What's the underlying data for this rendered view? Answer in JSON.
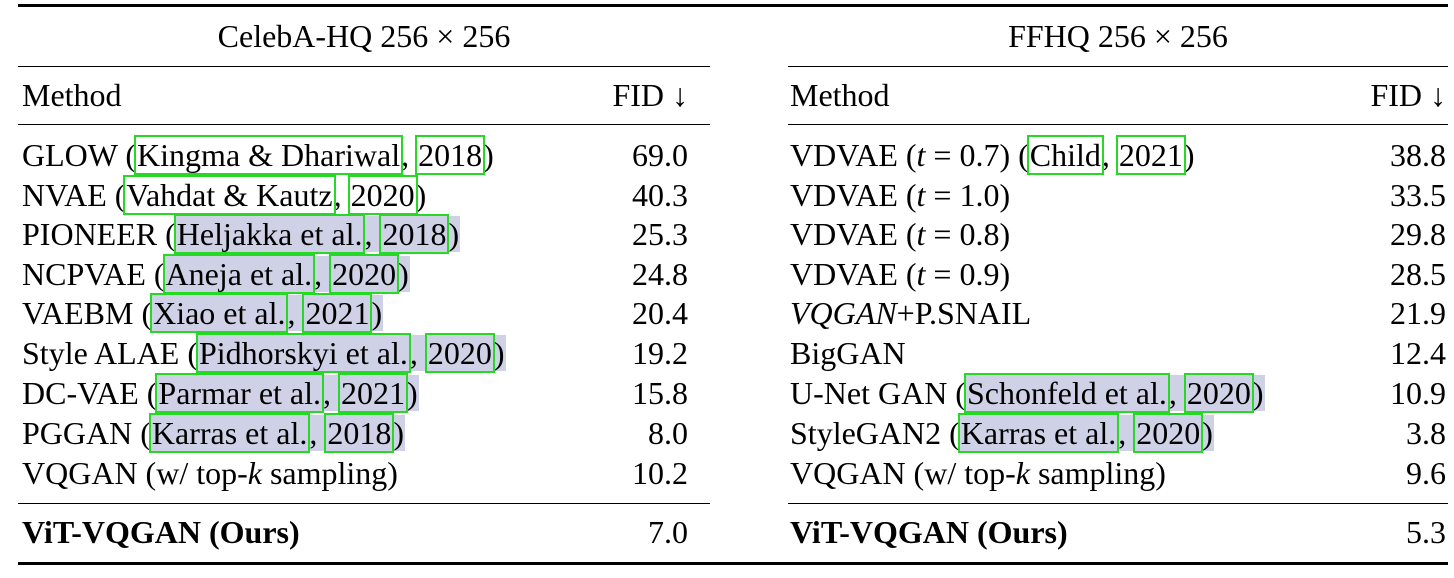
{
  "left": {
    "title": "CelebA-HQ 256 × 256",
    "col_method": "Method",
    "col_fid": "FID ↓",
    "rows": [
      {
        "prefix": "GLOW (",
        "cite_a": "Kingma & Dhariwal",
        "sep": ", ",
        "cite_b": "2018",
        "suffix": ")",
        "fid": "69.0",
        "shaded": false
      },
      {
        "prefix": "NVAE (",
        "cite_a": "Vahdat & Kautz",
        "sep": ", ",
        "cite_b": "2020",
        "suffix": ")",
        "fid": "40.3",
        "shaded": false
      },
      {
        "prefix": "PIONEER (",
        "cite_a": "Heljakka et al.",
        "sep": ", ",
        "cite_b": "2018",
        "suffix": ")",
        "fid": "25.3",
        "shaded": true
      },
      {
        "prefix": "NCPVAE (",
        "cite_a": "Aneja et al.",
        "sep": ", ",
        "cite_b": "2020",
        "suffix": ")",
        "fid": "24.8",
        "shaded": true
      },
      {
        "prefix": "VAEBM (",
        "cite_a": "Xiao et al.",
        "sep": ", ",
        "cite_b": "2021",
        "suffix": ")",
        "fid": "20.4",
        "shaded": true
      },
      {
        "prefix": "Style ALAE (",
        "cite_a": "Pidhorskyi et al.",
        "sep": ", ",
        "cite_b": "2020",
        "suffix": ")",
        "fid": "19.2",
        "shaded": true
      },
      {
        "prefix": "DC-VAE (",
        "cite_a": "Parmar et al.",
        "sep": ", ",
        "cite_b": "2021",
        "suffix": ")",
        "fid": "15.8",
        "shaded": true
      },
      {
        "prefix": "PGGAN (",
        "cite_a": "Karras et al.",
        "sep": ", ",
        "cite_b": "2018",
        "suffix": ")",
        "fid": "8.0",
        "shaded": true
      }
    ],
    "topk_pre": "VQGAN (w/ top-",
    "topk_k": "k",
    "topk_post": " sampling)",
    "topk_fid": "10.2",
    "ours": "ViT-VQGAN (Ours)",
    "ours_fid": "7.0"
  },
  "right": {
    "title": "FFHQ 256 × 256",
    "col_method": "Method",
    "col_fid": "FID ↓",
    "r1_pre": "VDVAE (",
    "r1_t": "t",
    "r1_eq": " = 0.7) (",
    "r1_cite_a": "Child",
    "r1_sep": ", ",
    "r1_cite_b": "2021",
    "r1_suf": ")",
    "r1_fid": "38.8",
    "r2_pre": "VDVAE (",
    "r2_t": "t",
    "r2_eq": " = 1.0)",
    "r2_fid": "33.5",
    "r3_pre": "VDVAE (",
    "r3_t": "t",
    "r3_eq": " = 0.8)",
    "r3_fid": "29.8",
    "r4_pre": "VDVAE (",
    "r4_t": "t",
    "r4_eq": " = 0.9)",
    "r4_fid": "28.5",
    "r5_it": "VQGAN",
    "r5_rest": "+P.SNAIL",
    "r5_fid": "21.9",
    "r6": "BigGAN",
    "r6_fid": "12.4",
    "r7_pre": "U-Net GAN (",
    "r7_cite_a": "Schonfeld et al.",
    "r7_sep": ", ",
    "r7_cite_b": "2020",
    "r7_suf": ")",
    "r7_fid": "10.9",
    "r8_pre": "StyleGAN2 (",
    "r8_cite_a": "Karras et al.",
    "r8_sep": ", ",
    "r8_cite_b": "2020",
    "r8_suf": ")",
    "r8_fid": "3.8",
    "topk_pre": "VQGAN (w/ top-",
    "topk_k": "k",
    "topk_post": " sampling)",
    "topk_fid": "9.6",
    "ours": "ViT-VQGAN (Ours)",
    "ours_fid": "5.3"
  }
}
